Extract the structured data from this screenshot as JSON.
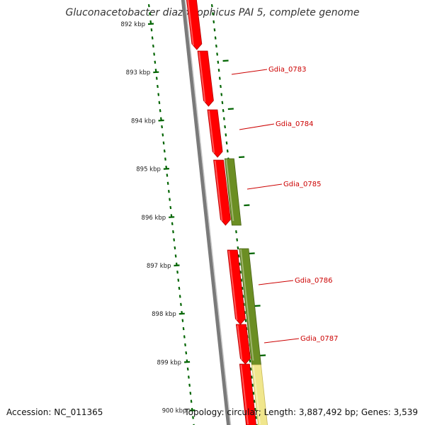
{
  "title": "Gluconacetobacter diazotrophicus PAI 5, complete genome",
  "accession": "Accession: NC_011365",
  "summary": "Topology: circular; Length: 3,887,492 bp; Genes: 3,539",
  "colors": {
    "backbone": "#7a7a7a",
    "forward_cds": "#ff0000",
    "reverse_cds": "#6b8e23",
    "rna": "#f0e68c",
    "ticks": "#006400",
    "label": "#cc0000"
  },
  "ticks": [
    {
      "label": "892 kbp"
    },
    {
      "label": "893 kbp"
    },
    {
      "label": "894 kbp"
    },
    {
      "label": "895 kbp"
    },
    {
      "label": "896 kbp"
    },
    {
      "label": "897 kbp"
    },
    {
      "label": "898 kbp"
    },
    {
      "label": "899 kbp"
    },
    {
      "label": "900 kbp"
    }
  ],
  "gene_labels": [
    "Gdia_0783",
    "Gdia_0784",
    "Gdia_0785",
    "Gdia_0786",
    "Gdia_0787"
  ]
}
